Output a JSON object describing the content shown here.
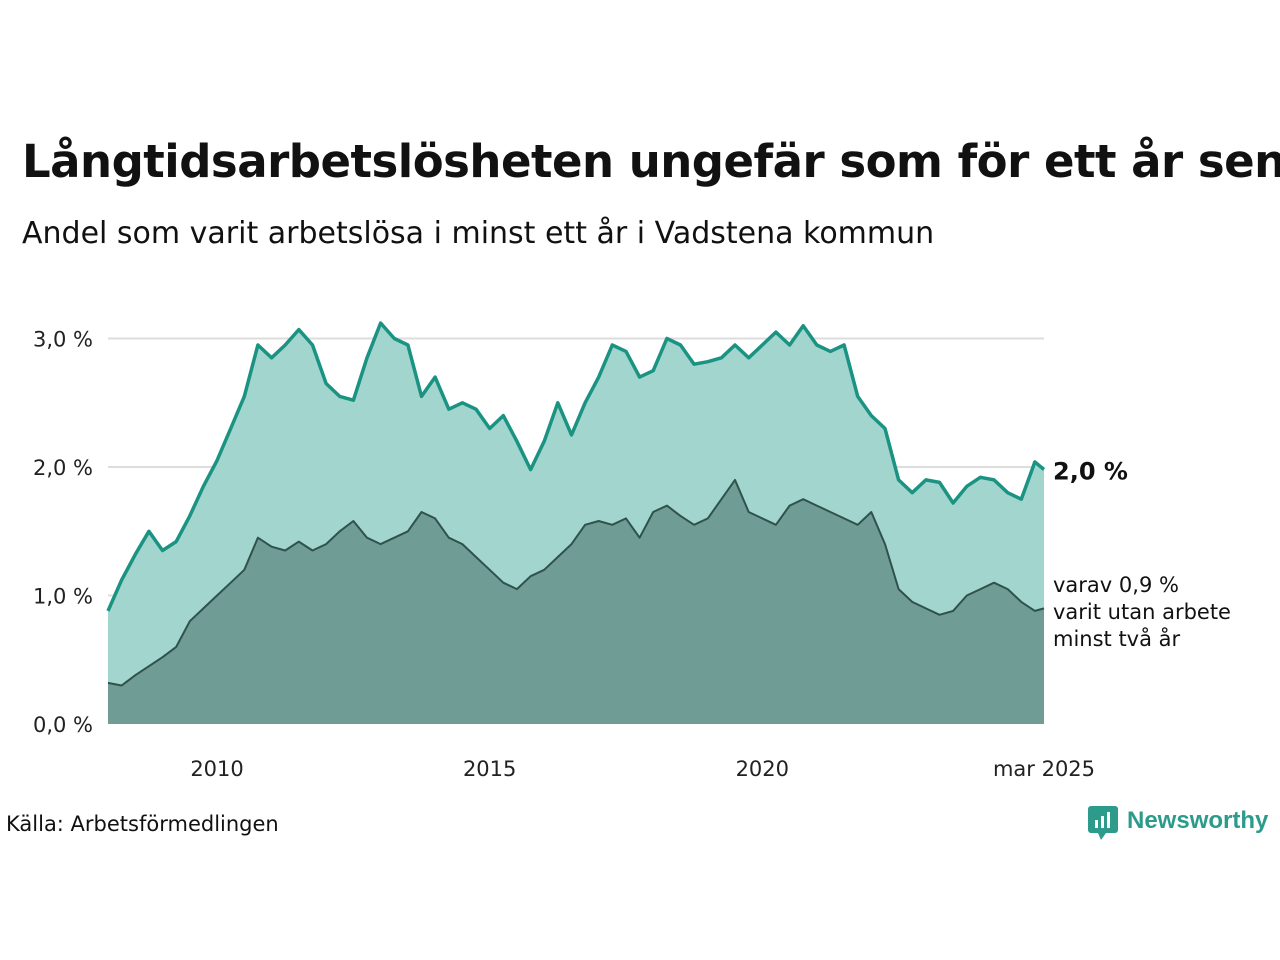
{
  "title": "Långtidsarbetslösheten ungefär som för ett år sen",
  "subtitle": "Andel som varit arbetslösa i minst ett år i Vadstena kommun",
  "source": "Källa: Arbetsförmedlingen",
  "brand": "Newsworthy",
  "colors": {
    "main_line": "#1b9382",
    "main_fill": "#a3d5cf",
    "sub_line": "#2f524c",
    "sub_fill": "#709c96",
    "grid": "#dddddd",
    "brand": "#2c9b8c"
  },
  "chart_data": {
    "type": "area",
    "x_ticks": [
      "2010",
      "2015",
      "2020",
      "mar 2025"
    ],
    "y_ticks": [
      "0,0 %",
      "1,0 %",
      "2,0 %",
      "3,0 %"
    ],
    "ylim": [
      0,
      3.3
    ],
    "xlim": [
      "2008-01",
      "2025-03"
    ],
    "grid": true,
    "end_label_main": "2,0 %",
    "end_label_sub_lines": [
      "varav 0,9 %",
      "varit utan arbete",
      "minst två år"
    ],
    "x": [
      "2008-01",
      "2008-04",
      "2008-07",
      "2008-10",
      "2009-01",
      "2009-04",
      "2009-07",
      "2009-10",
      "2010-01",
      "2010-04",
      "2010-07",
      "2010-10",
      "2011-01",
      "2011-04",
      "2011-07",
      "2011-10",
      "2012-01",
      "2012-04",
      "2012-07",
      "2012-10",
      "2013-01",
      "2013-04",
      "2013-07",
      "2013-10",
      "2014-01",
      "2014-04",
      "2014-07",
      "2014-10",
      "2015-01",
      "2015-04",
      "2015-07",
      "2015-10",
      "2016-01",
      "2016-04",
      "2016-07",
      "2016-10",
      "2017-01",
      "2017-04",
      "2017-07",
      "2017-10",
      "2018-01",
      "2018-04",
      "2018-07",
      "2018-10",
      "2019-01",
      "2019-04",
      "2019-07",
      "2019-10",
      "2020-01",
      "2020-04",
      "2020-07",
      "2020-10",
      "2021-01",
      "2021-04",
      "2021-07",
      "2021-10",
      "2022-01",
      "2022-04",
      "2022-07",
      "2022-10",
      "2023-01",
      "2023-04",
      "2023-07",
      "2023-10",
      "2024-01",
      "2024-04",
      "2024-07",
      "2024-10",
      "2025-01",
      "2025-03"
    ],
    "series": [
      {
        "name": "Minst ett år",
        "values": [
          0.88,
          1.12,
          1.32,
          1.5,
          1.35,
          1.42,
          1.62,
          1.85,
          2.05,
          2.3,
          2.55,
          2.95,
          2.85,
          2.95,
          3.07,
          2.95,
          2.65,
          2.55,
          2.52,
          2.85,
          3.12,
          3.0,
          2.95,
          2.55,
          2.7,
          2.45,
          2.5,
          2.45,
          2.3,
          2.4,
          2.2,
          1.98,
          2.2,
          2.5,
          2.25,
          2.5,
          2.7,
          2.95,
          2.9,
          2.7,
          2.75,
          3.0,
          2.95,
          2.8,
          2.82,
          2.85,
          2.95,
          2.85,
          2.95,
          3.05,
          2.95,
          3.1,
          2.95,
          2.9,
          2.95,
          2.55,
          2.4,
          2.3,
          1.9,
          1.8,
          1.9,
          1.88,
          1.72,
          1.85,
          1.92,
          1.9,
          1.8,
          1.75,
          2.04,
          1.98
        ]
      },
      {
        "name": "Minst två år",
        "values": [
          0.32,
          0.3,
          0.38,
          0.45,
          0.52,
          0.6,
          0.8,
          0.9,
          1.0,
          1.1,
          1.2,
          1.45,
          1.38,
          1.35,
          1.42,
          1.35,
          1.4,
          1.5,
          1.58,
          1.45,
          1.4,
          1.45,
          1.5,
          1.65,
          1.6,
          1.45,
          1.4,
          1.3,
          1.2,
          1.1,
          1.05,
          1.15,
          1.2,
          1.3,
          1.4,
          1.55,
          1.58,
          1.55,
          1.6,
          1.45,
          1.65,
          1.7,
          1.62,
          1.55,
          1.6,
          1.75,
          1.9,
          1.65,
          1.6,
          1.55,
          1.7,
          1.75,
          1.7,
          1.65,
          1.6,
          1.55,
          1.65,
          1.4,
          1.05,
          0.95,
          0.9,
          0.85,
          0.88,
          1.0,
          1.05,
          1.1,
          1.05,
          0.95,
          0.88,
          0.9
        ]
      }
    ]
  }
}
